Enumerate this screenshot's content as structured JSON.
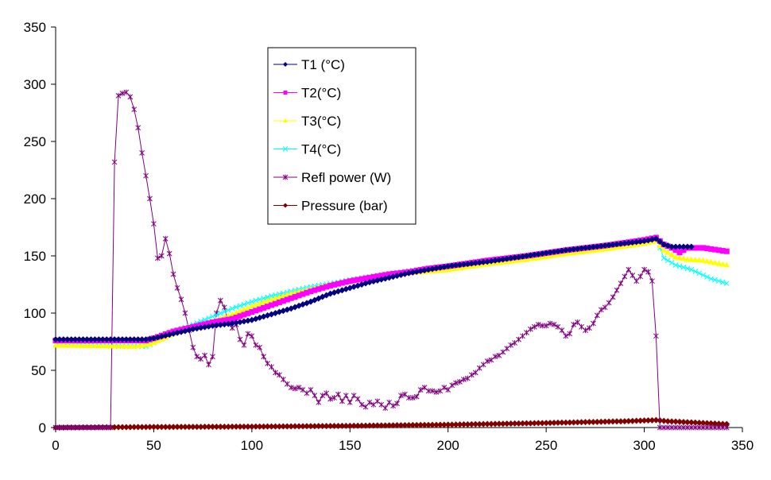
{
  "chart_data": {
    "type": "line",
    "title": "",
    "xlabel": "",
    "ylabel": "",
    "xlim": [
      0,
      350
    ],
    "ylim": [
      0,
      350
    ],
    "x_ticks": [
      "0",
      "50",
      "100",
      "150",
      "200",
      "250",
      "300",
      "350"
    ],
    "y_ticks": [
      "0",
      "50",
      "100",
      "150",
      "200",
      "250",
      "300",
      "350"
    ],
    "grid": false,
    "legend_position": "top-center",
    "sample_step": 2,
    "x_end": 342,
    "series": [
      {
        "name": "T1 (°C)",
        "color": "#000080",
        "marker": "diamond",
        "points": [
          [
            0,
            77
          ],
          [
            46,
            77
          ],
          [
            50,
            78
          ],
          [
            60,
            82
          ],
          [
            70,
            86
          ],
          [
            80,
            89
          ],
          [
            90,
            91
          ],
          [
            100,
            94
          ],
          [
            110,
            99
          ],
          [
            120,
            104
          ],
          [
            130,
            110
          ],
          [
            140,
            117
          ],
          [
            150,
            122
          ],
          [
            160,
            127
          ],
          [
            170,
            131
          ],
          [
            180,
            135
          ],
          [
            190,
            138
          ],
          [
            200,
            141
          ],
          [
            220,
            145
          ],
          [
            240,
            150
          ],
          [
            260,
            155
          ],
          [
            280,
            159
          ],
          [
            300,
            163
          ],
          [
            306,
            165
          ],
          [
            310,
            160
          ],
          [
            314,
            158
          ],
          [
            320,
            158
          ],
          [
            324,
            158
          ]
        ]
      },
      {
        "name": "T2(°C)",
        "color": "#FF00FF",
        "marker": "square",
        "points": [
          [
            0,
            76
          ],
          [
            46,
            76
          ],
          [
            50,
            78
          ],
          [
            60,
            84
          ],
          [
            70,
            88
          ],
          [
            80,
            92
          ],
          [
            90,
            95
          ],
          [
            100,
            101
          ],
          [
            110,
            107
          ],
          [
            120,
            113
          ],
          [
            130,
            119
          ],
          [
            140,
            124
          ],
          [
            150,
            128
          ],
          [
            160,
            131
          ],
          [
            170,
            134
          ],
          [
            180,
            136
          ],
          [
            190,
            139
          ],
          [
            200,
            141
          ],
          [
            220,
            146
          ],
          [
            240,
            150
          ],
          [
            260,
            155
          ],
          [
            280,
            159
          ],
          [
            300,
            164
          ],
          [
            306,
            166
          ],
          [
            310,
            160
          ],
          [
            314,
            157
          ],
          [
            318,
            153
          ],
          [
            322,
            157
          ],
          [
            330,
            157
          ],
          [
            342,
            154
          ]
        ]
      },
      {
        "name": "T3(°C)",
        "color": "#FFFF00",
        "marker": "triangle",
        "points": [
          [
            0,
            72
          ],
          [
            40,
            71
          ],
          [
            48,
            73
          ],
          [
            55,
            78
          ],
          [
            60,
            82
          ],
          [
            70,
            87
          ],
          [
            80,
            93
          ],
          [
            90,
            99
          ],
          [
            100,
            106
          ],
          [
            110,
            112
          ],
          [
            120,
            117
          ],
          [
            130,
            121
          ],
          [
            140,
            125
          ],
          [
            150,
            128
          ],
          [
            160,
            131
          ],
          [
            170,
            133
          ],
          [
            180,
            135
          ],
          [
            200,
            138
          ],
          [
            220,
            143
          ],
          [
            240,
            147
          ],
          [
            260,
            152
          ],
          [
            280,
            156
          ],
          [
            300,
            161
          ],
          [
            306,
            163
          ],
          [
            310,
            155
          ],
          [
            316,
            149
          ],
          [
            322,
            147
          ],
          [
            330,
            146
          ],
          [
            342,
            142
          ]
        ]
      },
      {
        "name": "T4(°C)",
        "color": "#00FFFF",
        "marker": "x",
        "points": [
          [
            0,
            73
          ],
          [
            30,
            71
          ],
          [
            46,
            71
          ],
          [
            50,
            74
          ],
          [
            60,
            84
          ],
          [
            70,
            90
          ],
          [
            80,
            97
          ],
          [
            90,
            104
          ],
          [
            100,
            110
          ],
          [
            110,
            115
          ],
          [
            120,
            119
          ],
          [
            130,
            123
          ],
          [
            140,
            126
          ],
          [
            150,
            129
          ],
          [
            160,
            132
          ],
          [
            180,
            137
          ],
          [
            200,
            141
          ],
          [
            220,
            145
          ],
          [
            240,
            150
          ],
          [
            260,
            155
          ],
          [
            280,
            159
          ],
          [
            300,
            164
          ],
          [
            306,
            166
          ],
          [
            310,
            148
          ],
          [
            316,
            142
          ],
          [
            324,
            138
          ],
          [
            334,
            130
          ],
          [
            342,
            126
          ]
        ]
      },
      {
        "name": "Refl power (W)",
        "color": "#800080",
        "marker": "star",
        "points": [
          [
            0,
            0
          ],
          [
            26,
            0
          ],
          [
            28,
            0
          ],
          [
            30,
            232
          ],
          [
            32,
            290
          ],
          [
            34,
            292
          ],
          [
            36,
            293
          ],
          [
            38,
            289
          ],
          [
            40,
            278
          ],
          [
            42,
            262
          ],
          [
            44,
            240
          ],
          [
            46,
            220
          ],
          [
            48,
            200
          ],
          [
            50,
            178
          ],
          [
            52,
            148
          ],
          [
            54,
            150
          ],
          [
            56,
            165
          ],
          [
            58,
            152
          ],
          [
            60,
            134
          ],
          [
            62,
            122
          ],
          [
            64,
            112
          ],
          [
            66,
            100
          ],
          [
            68,
            85
          ],
          [
            70,
            70
          ],
          [
            72,
            62
          ],
          [
            74,
            60
          ],
          [
            76,
            63
          ],
          [
            78,
            55
          ],
          [
            79,
            50
          ],
          [
            80,
            62
          ],
          [
            82,
            100
          ],
          [
            84,
            111
          ],
          [
            86,
            105
          ],
          [
            88,
            92
          ],
          [
            90,
            87
          ],
          [
            92,
            90
          ],
          [
            94,
            77
          ],
          [
            96,
            72
          ],
          [
            98,
            82
          ],
          [
            100,
            80
          ],
          [
            102,
            72
          ],
          [
            104,
            70
          ],
          [
            106,
            62
          ],
          [
            108,
            56
          ],
          [
            110,
            53
          ],
          [
            112,
            48
          ],
          [
            114,
            46
          ],
          [
            116,
            42
          ],
          [
            118,
            38
          ],
          [
            120,
            35
          ],
          [
            122,
            34
          ],
          [
            124,
            35
          ],
          [
            126,
            33
          ],
          [
            128,
            30
          ],
          [
            130,
            33
          ],
          [
            132,
            28
          ],
          [
            134,
            22
          ],
          [
            136,
            28
          ],
          [
            138,
            30
          ],
          [
            140,
            25
          ],
          [
            142,
            26
          ],
          [
            144,
            29
          ],
          [
            146,
            23
          ],
          [
            148,
            28
          ],
          [
            150,
            22
          ],
          [
            152,
            28
          ],
          [
            154,
            25
          ],
          [
            156,
            20
          ],
          [
            158,
            18
          ],
          [
            160,
            22
          ],
          [
            162,
            20
          ],
          [
            164,
            23
          ],
          [
            166,
            20
          ],
          [
            168,
            17
          ],
          [
            170,
            22
          ],
          [
            172,
            19
          ],
          [
            174,
            21
          ],
          [
            176,
            28
          ],
          [
            178,
            29
          ],
          [
            180,
            26
          ],
          [
            182,
            26
          ],
          [
            184,
            27
          ],
          [
            186,
            33
          ],
          [
            188,
            35
          ],
          [
            190,
            32
          ],
          [
            192,
            32
          ],
          [
            194,
            31
          ],
          [
            196,
            32
          ],
          [
            198,
            35
          ],
          [
            200,
            33
          ],
          [
            202,
            37
          ],
          [
            204,
            39
          ],
          [
            206,
            40
          ],
          [
            208,
            42
          ],
          [
            210,
            43
          ],
          [
            212,
            46
          ],
          [
            214,
            48
          ],
          [
            216,
            52
          ],
          [
            218,
            55
          ],
          [
            220,
            58
          ],
          [
            222,
            59
          ],
          [
            224,
            62
          ],
          [
            226,
            63
          ],
          [
            228,
            66
          ],
          [
            230,
            69
          ],
          [
            232,
            72
          ],
          [
            234,
            74
          ],
          [
            236,
            77
          ],
          [
            238,
            80
          ],
          [
            240,
            83
          ],
          [
            242,
            86
          ],
          [
            244,
            88
          ],
          [
            246,
            90
          ],
          [
            248,
            89
          ],
          [
            250,
            89
          ],
          [
            252,
            91
          ],
          [
            254,
            90
          ],
          [
            256,
            88
          ],
          [
            258,
            85
          ],
          [
            260,
            80
          ],
          [
            262,
            82
          ],
          [
            264,
            90
          ],
          [
            266,
            92
          ],
          [
            268,
            88
          ],
          [
            270,
            85
          ],
          [
            272,
            87
          ],
          [
            274,
            91
          ],
          [
            276,
            98
          ],
          [
            278,
            103
          ],
          [
            280,
            105
          ],
          [
            282,
            109
          ],
          [
            284,
            114
          ],
          [
            286,
            120
          ],
          [
            288,
            126
          ],
          [
            290,
            132
          ],
          [
            292,
            138
          ],
          [
            294,
            133
          ],
          [
            296,
            128
          ],
          [
            298,
            132
          ],
          [
            300,
            138
          ],
          [
            302,
            136
          ],
          [
            304,
            128
          ],
          [
            306,
            80
          ],
          [
            308,
            0
          ],
          [
            342,
            0
          ]
        ]
      },
      {
        "name": "Pressure (bar)",
        "color": "#800000",
        "marker": "diamond",
        "points": [
          [
            0,
            0
          ],
          [
            50,
            0.5
          ],
          [
            100,
            0.8
          ],
          [
            150,
            1.5
          ],
          [
            200,
            2.5
          ],
          [
            250,
            4
          ],
          [
            290,
            5.5
          ],
          [
            306,
            6.5
          ],
          [
            312,
            5.5
          ],
          [
            330,
            4
          ],
          [
            342,
            3
          ]
        ]
      }
    ]
  }
}
